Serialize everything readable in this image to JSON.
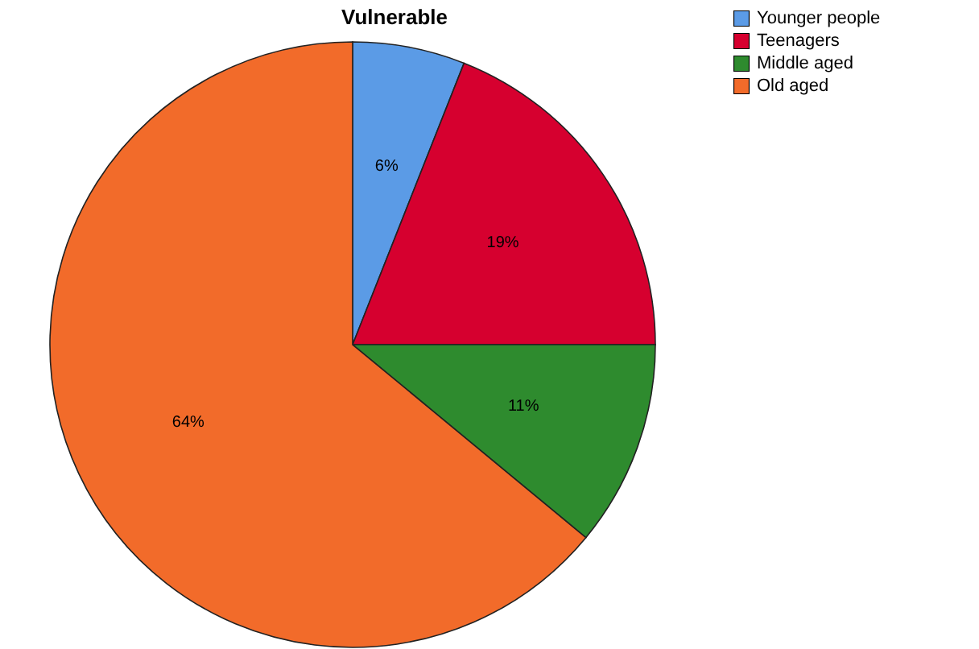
{
  "chart_data": {
    "type": "pie",
    "title": "Vulnerable",
    "categories": [
      "Younger people",
      "Teenagers",
      "Middle aged",
      "Old aged"
    ],
    "values": [
      6,
      19,
      11,
      64
    ],
    "colors": [
      "#5b9be6",
      "#d6002f",
      "#2e8b2e",
      "#f26b2a"
    ],
    "value_labels": [
      "6%",
      "19%",
      "11%",
      "64%"
    ],
    "legend": "top right"
  }
}
